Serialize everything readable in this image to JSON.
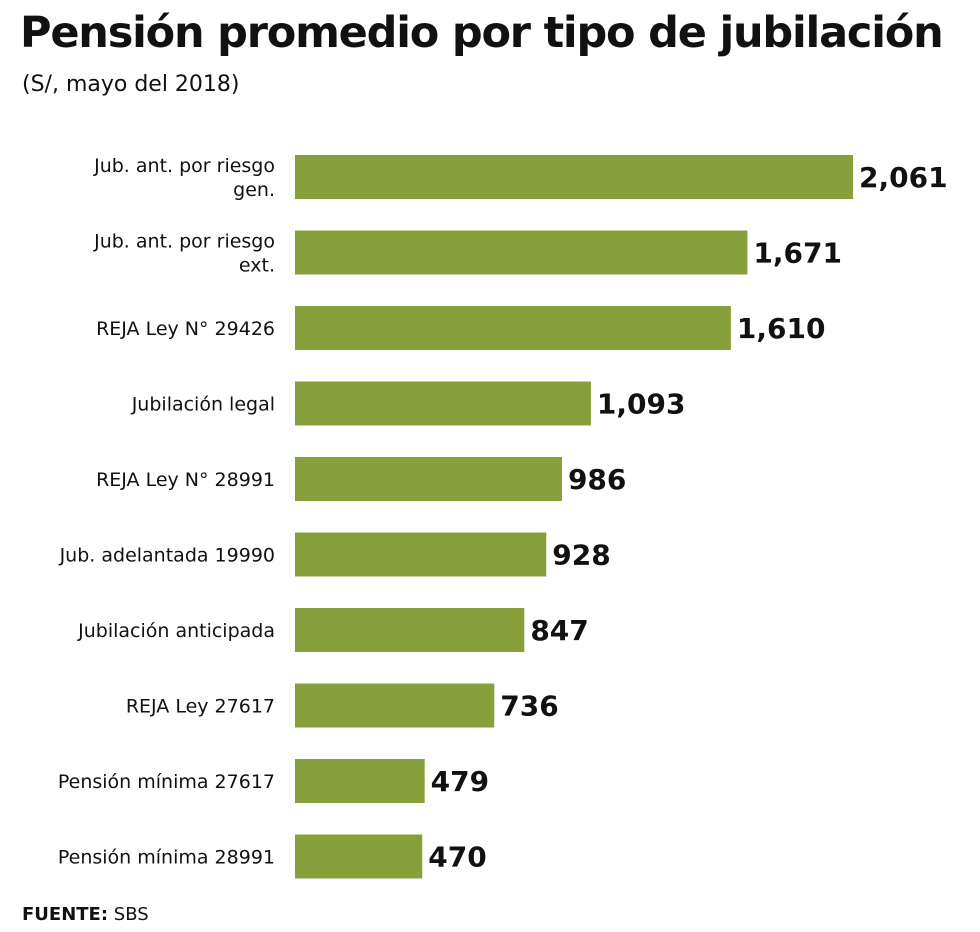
{
  "chart_data": {
    "type": "bar",
    "orientation": "horizontal",
    "title": "Pensión promedio por tipo de jubilación",
    "subtitle": "(S/, mayo del 2018)",
    "categories": [
      [
        "Jub. ant. por riesgo",
        "gen."
      ],
      [
        "Jub. ant. por riesgo",
        "ext."
      ],
      [
        "REJA Ley N° 29426"
      ],
      [
        "Jubilación legal"
      ],
      [
        "REJA Ley N° 28991"
      ],
      [
        "Jub. adelantada 19990"
      ],
      [
        "Jubilación anticipada"
      ],
      [
        "REJA Ley 27617"
      ],
      [
        "Pensión mínima 27617"
      ],
      [
        "Pensión mínima 28991"
      ]
    ],
    "values": [
      2061,
      1671,
      1610,
      1093,
      986,
      928,
      847,
      736,
      479,
      470
    ],
    "value_labels": [
      "2,061",
      "1,671",
      "1,610",
      "1,093",
      "986",
      "928",
      "847",
      "736",
      "479",
      "470"
    ],
    "bar_color": "#87a03b",
    "grid": false,
    "axes_visible": false
  },
  "source": {
    "label": "FUENTE:",
    "value": " SBS"
  }
}
